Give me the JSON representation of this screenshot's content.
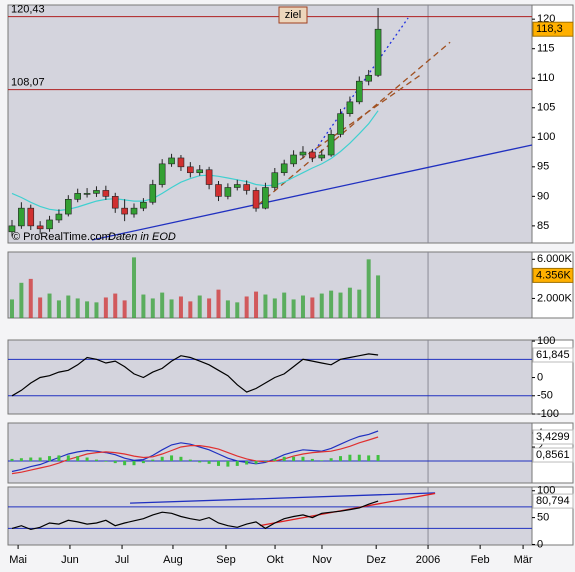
{
  "chart_data": [
    {
      "type": "candlestick",
      "annotations": {
        "target": "ziel",
        "copyright": "© ProRealTime.com",
        "source": "Daten in EOD"
      },
      "x": [
        0,
        4,
        8,
        12,
        16,
        20,
        24,
        28,
        32,
        36,
        40,
        44,
        48,
        52,
        56,
        60,
        64,
        68,
        72,
        76,
        80,
        84,
        88,
        92,
        96,
        100,
        104,
        108,
        112,
        116,
        120,
        124,
        128,
        132,
        136,
        140,
        144,
        148,
        152,
        156
      ],
      "open": [
        84,
        85,
        88,
        85,
        84.5,
        86,
        87,
        89.5,
        90.5,
        90.5,
        91,
        90,
        88,
        87,
        88,
        89,
        92,
        95.5,
        96.5,
        95,
        94,
        94.5,
        92,
        90,
        91.5,
        92,
        91,
        88,
        91.5,
        94,
        95.5,
        97,
        97.5,
        96.5,
        97,
        100.5,
        104,
        106,
        109.5,
        110.5
      ],
      "high": [
        86,
        89,
        88.6,
        85.8,
        86.7,
        87.8,
        90.2,
        91.3,
        91.4,
        91.7,
        91.8,
        90.6,
        89.5,
        88.8,
        89.7,
        92.8,
        96.3,
        97.2,
        97,
        95.8,
        95.3,
        95,
        92.6,
        92.2,
        92.8,
        92.7,
        91.5,
        92.3,
        94.8,
        96.2,
        97.8,
        98.5,
        98,
        97.9,
        101.3,
        104.8,
        106.9,
        110.3,
        111.4,
        121.9
      ],
      "low": [
        83.2,
        84.5,
        84.3,
        83.6,
        84,
        85.5,
        86.6,
        89,
        89.8,
        89.9,
        89.4,
        87.2,
        85.8,
        86.4,
        87.5,
        88.6,
        91.5,
        95,
        94.3,
        93.2,
        93.5,
        91.2,
        89.2,
        89.5,
        91,
        90.3,
        87.4,
        87.8,
        91,
        93.5,
        95,
        96.4,
        95.8,
        96,
        96.7,
        100,
        103.5,
        105.6,
        108.8,
        110.2
      ],
      "close": [
        85,
        88,
        85,
        84.5,
        86,
        87,
        89.5,
        90.5,
        90.5,
        91,
        90,
        88,
        87,
        88,
        89,
        92,
        95.5,
        96.5,
        95,
        94,
        94.5,
        92,
        90,
        91.5,
        92,
        91,
        88,
        91.5,
        94,
        95.5,
        97,
        97.5,
        96.5,
        97,
        100.5,
        104,
        106,
        109.5,
        110.5,
        118.3
      ],
      "value_labels": [
        null,
        null,
        null,
        null,
        null,
        null,
        null,
        null,
        null,
        null,
        null,
        null,
        null,
        null,
        null,
        null,
        null,
        null,
        null,
        null,
        null,
        null,
        null,
        null,
        null,
        null,
        null,
        null,
        null,
        null,
        null,
        null,
        null,
        null,
        null,
        null,
        null,
        null,
        null,
        "118,3"
      ],
      "label_bg": "#ffb000",
      "up_color": "#33a033",
      "down_color": "#d03030",
      "ma_values": [
        90.5,
        89.8,
        89,
        88.3,
        87.8,
        87.6,
        87.8,
        88.2,
        88.7,
        89.2,
        89.5,
        89.6,
        89.4,
        89.2,
        89.2,
        89.6,
        90.5,
        91.5,
        92.4,
        93,
        93.5,
        93.6,
        93.4,
        93.1,
        92.8,
        92.5,
        92,
        91.8,
        91.9,
        92.4,
        93.2,
        94,
        94.8,
        95.5,
        96.4,
        97.6,
        99,
        100.6,
        102.3,
        104.5
      ],
      "ma_color": "#40d0d0",
      "xlim": [
        -1.7,
        221.6
      ],
      "ylim": [
        82.1,
        122.4
      ],
      "yticks": [
        85,
        90,
        95,
        100,
        105,
        110,
        115,
        120
      ],
      "levels": [
        {
          "value": 120.43,
          "label": "120,43"
        },
        {
          "value": 108.07,
          "label": "108,07"
        }
      ],
      "level_color": "#b02020",
      "trendlines": [
        {
          "x": [
            34.1,
            221.6
          ],
          "y": [
            82.6,
            98.7
          ],
          "color": "#2030c0",
          "style": "solid"
        },
        {
          "x": [
            129.2,
            168.8
          ],
          "y": [
            97.85,
            120.2
          ],
          "color": "#2030e0",
          "style": "dotted"
        },
        {
          "x": [
            104.9,
            186.7
          ],
          "y": [
            88.55,
            116.1
          ],
          "color": "#a05020",
          "style": "dashed"
        },
        {
          "x": [
            122.8,
            173.9
          ],
          "y": [
            96.2,
            110.5
          ],
          "color": "#a05020",
          "style": "dashed"
        }
      ]
    },
    {
      "type": "bar",
      "values": [
        1900,
        3600,
        4000,
        2100,
        2500,
        1800,
        2300,
        2000,
        1700,
        1600,
        2100,
        2500,
        1800,
        6200,
        2400,
        2000,
        2600,
        1900,
        2200,
        1700,
        2300,
        2000,
        2900,
        1800,
        1600,
        2200,
        2700,
        2400,
        2000,
        2600,
        1900,
        2300,
        2100,
        2500,
        2800,
        2600,
        3100,
        2900,
        6000,
        4356
      ],
      "value_labels": [
        null,
        null,
        null,
        null,
        null,
        null,
        null,
        null,
        null,
        null,
        null,
        null,
        null,
        null,
        null,
        null,
        null,
        null,
        null,
        null,
        null,
        null,
        null,
        null,
        null,
        null,
        null,
        null,
        null,
        null,
        null,
        null,
        null,
        null,
        null,
        null,
        null,
        null,
        null,
        "4.356K"
      ],
      "label_bg": "#ffb000",
      "ylim": [
        0,
        6750
      ],
      "yticks": [
        {
          "value": 6000,
          "label": "6.000K"
        },
        {
          "value": 2000,
          "label": "2.000K"
        }
      ]
    },
    {
      "type": "line",
      "series": [
        {
          "color": "#000000",
          "values": [
            -50,
            -35,
            -15,
            0,
            5,
            15,
            20,
            35,
            55,
            50,
            40,
            45,
            30,
            10,
            0,
            15,
            25,
            45,
            60,
            55,
            45,
            35,
            20,
            5,
            -20,
            -40,
            -30,
            -15,
            0,
            10,
            30,
            50,
            45,
            40,
            35,
            50,
            55,
            60,
            65,
            61.845
          ],
          "value_labels": [
            null,
            null,
            null,
            null,
            null,
            null,
            null,
            null,
            null,
            null,
            null,
            null,
            null,
            null,
            null,
            null,
            null,
            null,
            null,
            null,
            null,
            null,
            null,
            null,
            null,
            null,
            null,
            null,
            null,
            null,
            null,
            null,
            null,
            null,
            null,
            null,
            null,
            null,
            null,
            "61,845"
          ]
        }
      ],
      "ylim": [
        -100,
        103
      ],
      "yticks": [
        100,
        0,
        -50,
        -100
      ],
      "levels": [
        50,
        -50
      ],
      "level_color": "#2030c0"
    },
    {
      "type": "line",
      "series": [
        {
          "color": "#2030c0",
          "values": [
            -1.5,
            -1.2,
            -0.8,
            -0.5,
            0,
            0.5,
            1,
            1.3,
            1.5,
            1.4,
            1.2,
            0.9,
            0.4,
            0.1,
            0.2,
            0.8,
            1.6,
            2.3,
            2.6,
            2.4,
            2,
            1.6,
            1,
            0.4,
            0,
            -0.2,
            -0.4,
            -0.2,
            0.3,
            0.9,
            1.3,
            1.6,
            1.5,
            1.4,
            1.8,
            2.4,
            3,
            3.5,
            3.8,
            4.286
          ]
        },
        {
          "color": "#e03030",
          "values": [
            -1.8,
            -1.6,
            -1.3,
            -1,
            -0.7,
            -0.3,
            0.2,
            0.6,
            1,
            1.2,
            1.3,
            1.2,
            1,
            0.7,
            0.5,
            0.6,
            1,
            1.5,
            2,
            2.2,
            2.2,
            2,
            1.7,
            1.2,
            0.7,
            0.3,
            0,
            -0.1,
            0,
            0.3,
            0.7,
            1,
            1.2,
            1.3,
            1.4,
            1.7,
            2.1,
            2.6,
            3,
            3.4299
          ],
          "value_labels": [
            null,
            null,
            null,
            null,
            null,
            null,
            null,
            null,
            null,
            null,
            null,
            null,
            null,
            null,
            null,
            null,
            null,
            null,
            null,
            null,
            null,
            null,
            null,
            null,
            null,
            null,
            null,
            null,
            null,
            null,
            null,
            null,
            null,
            null,
            null,
            null,
            null,
            null,
            null,
            "3,4299"
          ]
        },
        {
          "color": "#40c040",
          "style": "bar",
          "values": [
            0.3,
            0.4,
            0.5,
            0.5,
            0.7,
            0.8,
            0.8,
            0.7,
            0.5,
            0.2,
            -0.1,
            -0.3,
            -0.6,
            -0.6,
            -0.3,
            0.2,
            0.6,
            0.8,
            0.6,
            0.2,
            -0.2,
            -0.4,
            -0.7,
            -0.8,
            -0.7,
            -0.5,
            -0.4,
            -0.1,
            0.3,
            0.6,
            0.6,
            0.6,
            0.3,
            0.1,
            0.4,
            0.7,
            0.9,
            0.9,
            0.8,
            0.8561
          ],
          "value_labels": [
            null,
            null,
            null,
            null,
            null,
            null,
            null,
            null,
            null,
            null,
            null,
            null,
            null,
            null,
            null,
            null,
            null,
            null,
            null,
            null,
            null,
            null,
            null,
            null,
            null,
            null,
            null,
            null,
            null,
            null,
            null,
            null,
            null,
            null,
            null,
            null,
            null,
            null,
            null,
            "0,8561"
          ]
        }
      ],
      "ylim": [
        -3.14,
        5.43
      ],
      "yticks": [
        4,
        2
      ],
      "levels": [
        0
      ],
      "level_color": "#2030c0"
    },
    {
      "type": "line",
      "series": [
        {
          "color": "#000000",
          "values": [
            30,
            35,
            28,
            32,
            40,
            38,
            45,
            42,
            38,
            40,
            45,
            35,
            40,
            44,
            48,
            55,
            60,
            58,
            52,
            48,
            45,
            50,
            40,
            35,
            32,
            38,
            42,
            30,
            40,
            48,
            52,
            55,
            50,
            58,
            60,
            62,
            65,
            68,
            75,
            80.794
          ],
          "value_labels": [
            null,
            null,
            null,
            null,
            null,
            null,
            null,
            null,
            null,
            null,
            null,
            null,
            null,
            null,
            null,
            null,
            null,
            null,
            null,
            null,
            null,
            null,
            null,
            null,
            null,
            null,
            null,
            null,
            null,
            null,
            null,
            null,
            null,
            null,
            null,
            null,
            null,
            null,
            null,
            "80,794"
          ]
        }
      ],
      "ylim": [
        -1,
        107
      ],
      "yticks": [
        100,
        50,
        0
      ],
      "levels": [
        70,
        30
      ],
      "level_color": "#2030c0",
      "trendlines": [
        {
          "x": [
            50.3,
            180.3
          ],
          "y": [
            77,
            96
          ],
          "color": "#2030c0",
          "style": "solid"
        },
        {
          "x": [
            105.6,
            180.3
          ],
          "y": [
            35,
            95
          ],
          "color": "#e02020",
          "style": "solid"
        }
      ],
      "xticks": [
        {
          "value": 2.6,
          "label": "Mai"
        },
        {
          "value": 24.7,
          "label": "Jun"
        },
        {
          "value": 46.9,
          "label": "Jul"
        },
        {
          "value": 68.6,
          "label": "Aug"
        },
        {
          "value": 91.2,
          "label": "Sep"
        },
        {
          "value": 112.1,
          "label": "Okt"
        },
        {
          "value": 132.1,
          "label": "Nov"
        },
        {
          "value": 155.2,
          "label": "Dez"
        },
        {
          "value": 177.3,
          "label": "2006"
        },
        {
          "value": 199.5,
          "label": "Feb"
        },
        {
          "value": 217.8,
          "label": "Mär"
        }
      ]
    }
  ]
}
